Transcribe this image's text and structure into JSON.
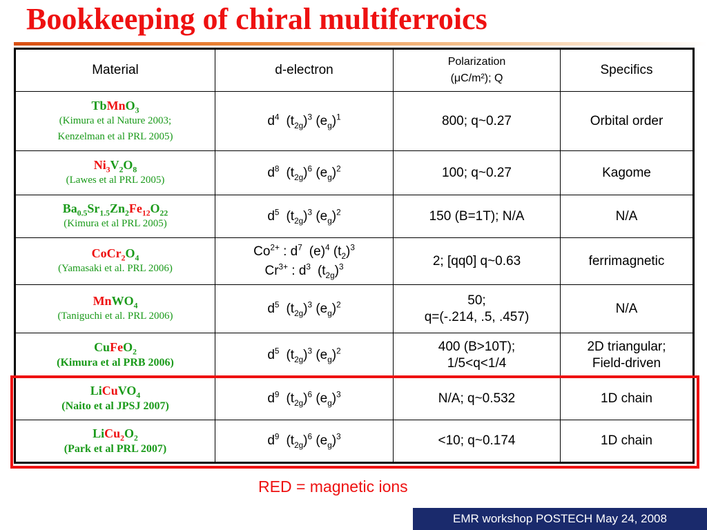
{
  "title": "Bookkeeping of chiral multiferroics",
  "header": {
    "material": "Material",
    "d_electron": "d-electron",
    "polarization_line1": "Polarization",
    "polarization_line2": "(μC/m²); Q",
    "specifics": "Specifics"
  },
  "rows": [
    {
      "formula_parts": [
        [
          "Tb",
          "grn",
          ""
        ],
        [
          "Mn",
          "red",
          ""
        ],
        [
          "O",
          "grn",
          "3"
        ]
      ],
      "refs": [
        "(Kimura et al Nature 2003;",
        "Kenzelman et al PRL 2005)"
      ],
      "d_electron": [
        [
          "d",
          "4"
        ],
        [
          "(t",
          "2g",
          ")",
          "3"
        ],
        [
          "(e",
          "g",
          ")",
          "1"
        ]
      ],
      "polarization": [
        "800; q~0.27"
      ],
      "specifics": [
        "Orbital order"
      ]
    },
    {
      "formula_parts": [
        [
          "Ni",
          "red",
          "3"
        ],
        [
          "V",
          "grn",
          "2"
        ],
        [
          "O",
          "grn",
          "8"
        ]
      ],
      "refs": [
        "(Lawes et al PRL 2005)"
      ],
      "d_electron": [
        [
          "d",
          "8"
        ],
        [
          "(t",
          "2g",
          ")",
          "6"
        ],
        [
          "(e",
          "g",
          ")",
          "2"
        ]
      ],
      "polarization": [
        "100; q~0.27"
      ],
      "specifics": [
        "Kagome"
      ]
    },
    {
      "formula_parts": [
        [
          "Ba",
          "grn",
          "0.5"
        ],
        [
          "Sr",
          "grn",
          "1.5"
        ],
        [
          "Zn",
          "grn",
          "2"
        ],
        [
          "Fe",
          "red",
          "12"
        ],
        [
          "O",
          "grn",
          "22"
        ]
      ],
      "refs": [
        "(Kimura et al PRL 2005)"
      ],
      "d_electron": [
        [
          "d",
          "5"
        ],
        [
          "(t",
          "2g",
          ")",
          "3"
        ],
        [
          "(e",
          "g",
          ")",
          "2"
        ]
      ],
      "polarization": [
        "150 (B=1T); N/A"
      ],
      "specifics": [
        "N/A"
      ]
    },
    {
      "formula_parts": [
        [
          "CoCr",
          "red",
          "2"
        ],
        [
          "O",
          "grn",
          "4"
        ]
      ],
      "refs": [
        "(Yamasaki et al. PRL 2006)"
      ],
      "d_electron_lines": [
        {
          "ion": "Co",
          "charge": "2+",
          "d": "7",
          "a": "(e)",
          "a_exp": "4",
          "b": "(t",
          "b_sub": "2",
          "b_exp": "3"
        },
        {
          "ion": "Cr",
          "charge": "3+",
          "d": "3",
          "b": "(t",
          "b_sub": "2g",
          "b_exp": "3"
        }
      ],
      "polarization": [
        "2; [qq0] q~0.63"
      ],
      "specifics": [
        "ferrimagnetic"
      ]
    },
    {
      "formula_parts": [
        [
          "Mn",
          "red",
          ""
        ],
        [
          "WO",
          "grn",
          "4"
        ]
      ],
      "refs": [
        "(Taniguchi et al. PRL 2006)"
      ],
      "d_electron": [
        [
          "d",
          "5"
        ],
        [
          "(t",
          "2g",
          ")",
          "3"
        ],
        [
          "(e",
          "g",
          ")",
          "2"
        ]
      ],
      "polarization": [
        "50;",
        "q=(-.214, .5, .457)"
      ],
      "specifics": [
        "N/A"
      ]
    },
    {
      "formula_parts": [
        [
          "Cu",
          "grn",
          ""
        ],
        [
          "Fe",
          "red",
          ""
        ],
        [
          "O",
          "grn",
          "2"
        ]
      ],
      "refs": [
        "(Kimura et al PRB 2006)"
      ],
      "refs_bold": true,
      "d_electron": [
        [
          "d",
          "5"
        ],
        [
          "(t",
          "2g",
          ")",
          "3"
        ],
        [
          "(e",
          "g",
          ")",
          "2"
        ]
      ],
      "polarization": [
        "400 (B>10T);",
        "1/5<q<1/4"
      ],
      "specifics": [
        "2D triangular;",
        "Field-driven"
      ]
    },
    {
      "formula_parts": [
        [
          "Li",
          "grn",
          ""
        ],
        [
          "Cu",
          "red",
          ""
        ],
        [
          "VO",
          "grn",
          "4"
        ]
      ],
      "refs": [
        "(Naito et al JPSJ 2007)"
      ],
      "refs_bold": true,
      "d_electron": [
        [
          "d",
          "9"
        ],
        [
          "(t",
          "2g",
          ")",
          "6"
        ],
        [
          "(e",
          "g",
          ")",
          "3"
        ]
      ],
      "polarization": [
        "N/A; q~0.532"
      ],
      "specifics": [
        "1D chain"
      ]
    },
    {
      "formula_parts": [
        [
          "Li",
          "grn",
          ""
        ],
        [
          "Cu",
          "red",
          "2"
        ],
        [
          "O",
          "grn",
          "2"
        ]
      ],
      "refs": [
        "(Park et al PRL 2007)"
      ],
      "refs_bold": true,
      "d_electron": [
        [
          "d",
          "9"
        ],
        [
          "(t",
          "2g",
          ")",
          "6"
        ],
        [
          "(e",
          "g",
          ")",
          "3"
        ]
      ],
      "polarization": [
        "<10; q~0.174"
      ],
      "specifics": [
        "1D chain"
      ]
    }
  ],
  "note": "RED = magnetic ions",
  "footer": "EMR workshop POSTECH  May  24, 2008",
  "colors": {
    "title": "#ee1111",
    "magnetic_ion": "#ee1111",
    "other_element": "#1a9a1a",
    "footer_bg": "#1a2a6c",
    "highlight_box": "#ee1111"
  }
}
